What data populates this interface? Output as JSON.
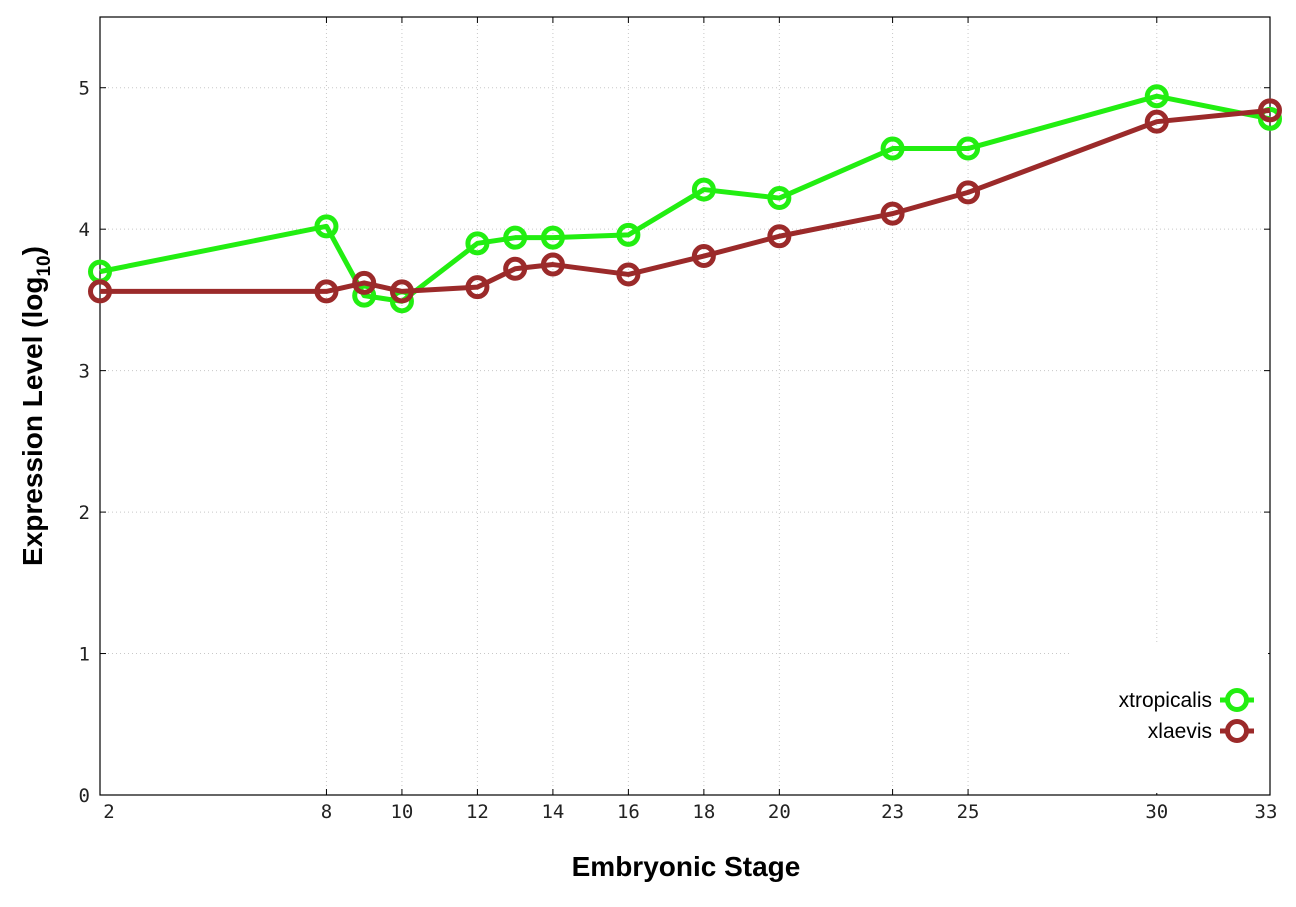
{
  "chart_data": {
    "type": "line",
    "xlabel": "Embryonic Stage",
    "ylabel": "Expression Level (log",
    "ylabel_sub": "10",
    "ylabel_close": ")",
    "x_ticks": [
      2,
      8,
      10,
      12,
      14,
      16,
      18,
      20,
      23,
      25,
      30,
      33
    ],
    "x_tick_labels": [
      "2",
      "8",
      "10",
      "12",
      "14",
      "16",
      "18",
      "20",
      "23",
      "25",
      "30",
      "33"
    ],
    "xlim": [
      2,
      33
    ],
    "y_ticks": [
      0,
      1,
      2,
      3,
      4,
      5
    ],
    "y_tick_labels": [
      "0",
      "1",
      "2",
      "3",
      "4",
      "5"
    ],
    "ylim": [
      0,
      5.5
    ],
    "grid": true,
    "legend_position": "bottom-right",
    "series": [
      {
        "name": "xtropicalis",
        "color": "#22ee11",
        "x": [
          2,
          8,
          9,
          10,
          12,
          13,
          14,
          16,
          18,
          20,
          23,
          25,
          30,
          33
        ],
        "y": [
          3.7,
          4.02,
          3.53,
          3.49,
          3.9,
          3.94,
          3.94,
          3.96,
          4.28,
          4.22,
          4.57,
          4.57,
          4.94,
          4.78
        ]
      },
      {
        "name": "xlaevis",
        "color": "#9b2a2a",
        "x": [
          2,
          8,
          9,
          10,
          12,
          13,
          14,
          16,
          18,
          20,
          23,
          25,
          30,
          33
        ],
        "y": [
          3.56,
          3.56,
          3.62,
          3.56,
          3.59,
          3.72,
          3.75,
          3.68,
          3.81,
          3.95,
          4.11,
          4.26,
          4.76,
          4.84
        ]
      }
    ]
  }
}
